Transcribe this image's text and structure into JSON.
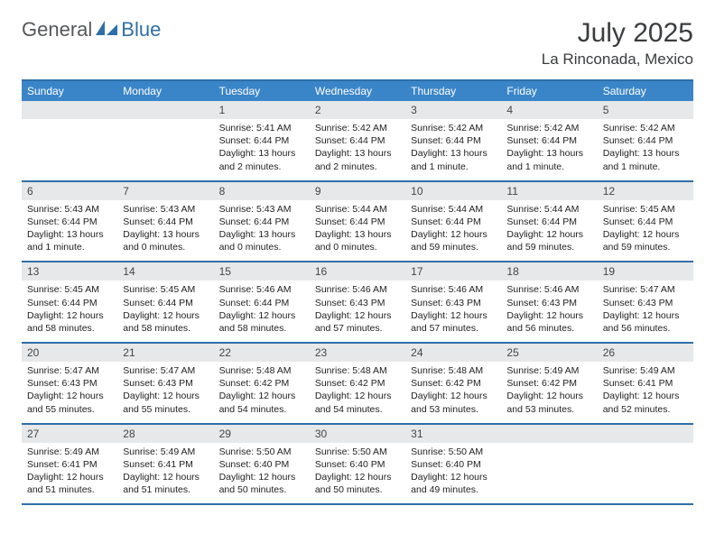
{
  "logo": {
    "text_general": "General",
    "text_blue": "Blue"
  },
  "title": {
    "month": "July 2025",
    "location": "La Rinconada, Mexico"
  },
  "colors": {
    "header_blue": "#3a85c8",
    "rule_blue": "#2f6fa7",
    "daynum_bg": "#e7e8ea",
    "text": "#222222",
    "logo_gray": "#55585a",
    "logo_blue": "#2f6fa7"
  },
  "day_names": [
    "Sunday",
    "Monday",
    "Tuesday",
    "Wednesday",
    "Thursday",
    "Friday",
    "Saturday"
  ],
  "weeks": [
    [
      {
        "day": "",
        "sunrise": "",
        "sunset": "",
        "daylight": ""
      },
      {
        "day": "",
        "sunrise": "",
        "sunset": "",
        "daylight": ""
      },
      {
        "day": "1",
        "sunrise": "Sunrise: 5:41 AM",
        "sunset": "Sunset: 6:44 PM",
        "daylight": "Daylight: 13 hours and 2 minutes."
      },
      {
        "day": "2",
        "sunrise": "Sunrise: 5:42 AM",
        "sunset": "Sunset: 6:44 PM",
        "daylight": "Daylight: 13 hours and 2 minutes."
      },
      {
        "day": "3",
        "sunrise": "Sunrise: 5:42 AM",
        "sunset": "Sunset: 6:44 PM",
        "daylight": "Daylight: 13 hours and 1 minute."
      },
      {
        "day": "4",
        "sunrise": "Sunrise: 5:42 AM",
        "sunset": "Sunset: 6:44 PM",
        "daylight": "Daylight: 13 hours and 1 minute."
      },
      {
        "day": "5",
        "sunrise": "Sunrise: 5:42 AM",
        "sunset": "Sunset: 6:44 PM",
        "daylight": "Daylight: 13 hours and 1 minute."
      }
    ],
    [
      {
        "day": "6",
        "sunrise": "Sunrise: 5:43 AM",
        "sunset": "Sunset: 6:44 PM",
        "daylight": "Daylight: 13 hours and 1 minute."
      },
      {
        "day": "7",
        "sunrise": "Sunrise: 5:43 AM",
        "sunset": "Sunset: 6:44 PM",
        "daylight": "Daylight: 13 hours and 0 minutes."
      },
      {
        "day": "8",
        "sunrise": "Sunrise: 5:43 AM",
        "sunset": "Sunset: 6:44 PM",
        "daylight": "Daylight: 13 hours and 0 minutes."
      },
      {
        "day": "9",
        "sunrise": "Sunrise: 5:44 AM",
        "sunset": "Sunset: 6:44 PM",
        "daylight": "Daylight: 13 hours and 0 minutes."
      },
      {
        "day": "10",
        "sunrise": "Sunrise: 5:44 AM",
        "sunset": "Sunset: 6:44 PM",
        "daylight": "Daylight: 12 hours and 59 minutes."
      },
      {
        "day": "11",
        "sunrise": "Sunrise: 5:44 AM",
        "sunset": "Sunset: 6:44 PM",
        "daylight": "Daylight: 12 hours and 59 minutes."
      },
      {
        "day": "12",
        "sunrise": "Sunrise: 5:45 AM",
        "sunset": "Sunset: 6:44 PM",
        "daylight": "Daylight: 12 hours and 59 minutes."
      }
    ],
    [
      {
        "day": "13",
        "sunrise": "Sunrise: 5:45 AM",
        "sunset": "Sunset: 6:44 PM",
        "daylight": "Daylight: 12 hours and 58 minutes."
      },
      {
        "day": "14",
        "sunrise": "Sunrise: 5:45 AM",
        "sunset": "Sunset: 6:44 PM",
        "daylight": "Daylight: 12 hours and 58 minutes."
      },
      {
        "day": "15",
        "sunrise": "Sunrise: 5:46 AM",
        "sunset": "Sunset: 6:44 PM",
        "daylight": "Daylight: 12 hours and 58 minutes."
      },
      {
        "day": "16",
        "sunrise": "Sunrise: 5:46 AM",
        "sunset": "Sunset: 6:43 PM",
        "daylight": "Daylight: 12 hours and 57 minutes."
      },
      {
        "day": "17",
        "sunrise": "Sunrise: 5:46 AM",
        "sunset": "Sunset: 6:43 PM",
        "daylight": "Daylight: 12 hours and 57 minutes."
      },
      {
        "day": "18",
        "sunrise": "Sunrise: 5:46 AM",
        "sunset": "Sunset: 6:43 PM",
        "daylight": "Daylight: 12 hours and 56 minutes."
      },
      {
        "day": "19",
        "sunrise": "Sunrise: 5:47 AM",
        "sunset": "Sunset: 6:43 PM",
        "daylight": "Daylight: 12 hours and 56 minutes."
      }
    ],
    [
      {
        "day": "20",
        "sunrise": "Sunrise: 5:47 AM",
        "sunset": "Sunset: 6:43 PM",
        "daylight": "Daylight: 12 hours and 55 minutes."
      },
      {
        "day": "21",
        "sunrise": "Sunrise: 5:47 AM",
        "sunset": "Sunset: 6:43 PM",
        "daylight": "Daylight: 12 hours and 55 minutes."
      },
      {
        "day": "22",
        "sunrise": "Sunrise: 5:48 AM",
        "sunset": "Sunset: 6:42 PM",
        "daylight": "Daylight: 12 hours and 54 minutes."
      },
      {
        "day": "23",
        "sunrise": "Sunrise: 5:48 AM",
        "sunset": "Sunset: 6:42 PM",
        "daylight": "Daylight: 12 hours and 54 minutes."
      },
      {
        "day": "24",
        "sunrise": "Sunrise: 5:48 AM",
        "sunset": "Sunset: 6:42 PM",
        "daylight": "Daylight: 12 hours and 53 minutes."
      },
      {
        "day": "25",
        "sunrise": "Sunrise: 5:49 AM",
        "sunset": "Sunset: 6:42 PM",
        "daylight": "Daylight: 12 hours and 53 minutes."
      },
      {
        "day": "26",
        "sunrise": "Sunrise: 5:49 AM",
        "sunset": "Sunset: 6:41 PM",
        "daylight": "Daylight: 12 hours and 52 minutes."
      }
    ],
    [
      {
        "day": "27",
        "sunrise": "Sunrise: 5:49 AM",
        "sunset": "Sunset: 6:41 PM",
        "daylight": "Daylight: 12 hours and 51 minutes."
      },
      {
        "day": "28",
        "sunrise": "Sunrise: 5:49 AM",
        "sunset": "Sunset: 6:41 PM",
        "daylight": "Daylight: 12 hours and 51 minutes."
      },
      {
        "day": "29",
        "sunrise": "Sunrise: 5:50 AM",
        "sunset": "Sunset: 6:40 PM",
        "daylight": "Daylight: 12 hours and 50 minutes."
      },
      {
        "day": "30",
        "sunrise": "Sunrise: 5:50 AM",
        "sunset": "Sunset: 6:40 PM",
        "daylight": "Daylight: 12 hours and 50 minutes."
      },
      {
        "day": "31",
        "sunrise": "Sunrise: 5:50 AM",
        "sunset": "Sunset: 6:40 PM",
        "daylight": "Daylight: 12 hours and 49 minutes."
      },
      {
        "day": "",
        "sunrise": "",
        "sunset": "",
        "daylight": ""
      },
      {
        "day": "",
        "sunrise": "",
        "sunset": "",
        "daylight": ""
      }
    ]
  ]
}
